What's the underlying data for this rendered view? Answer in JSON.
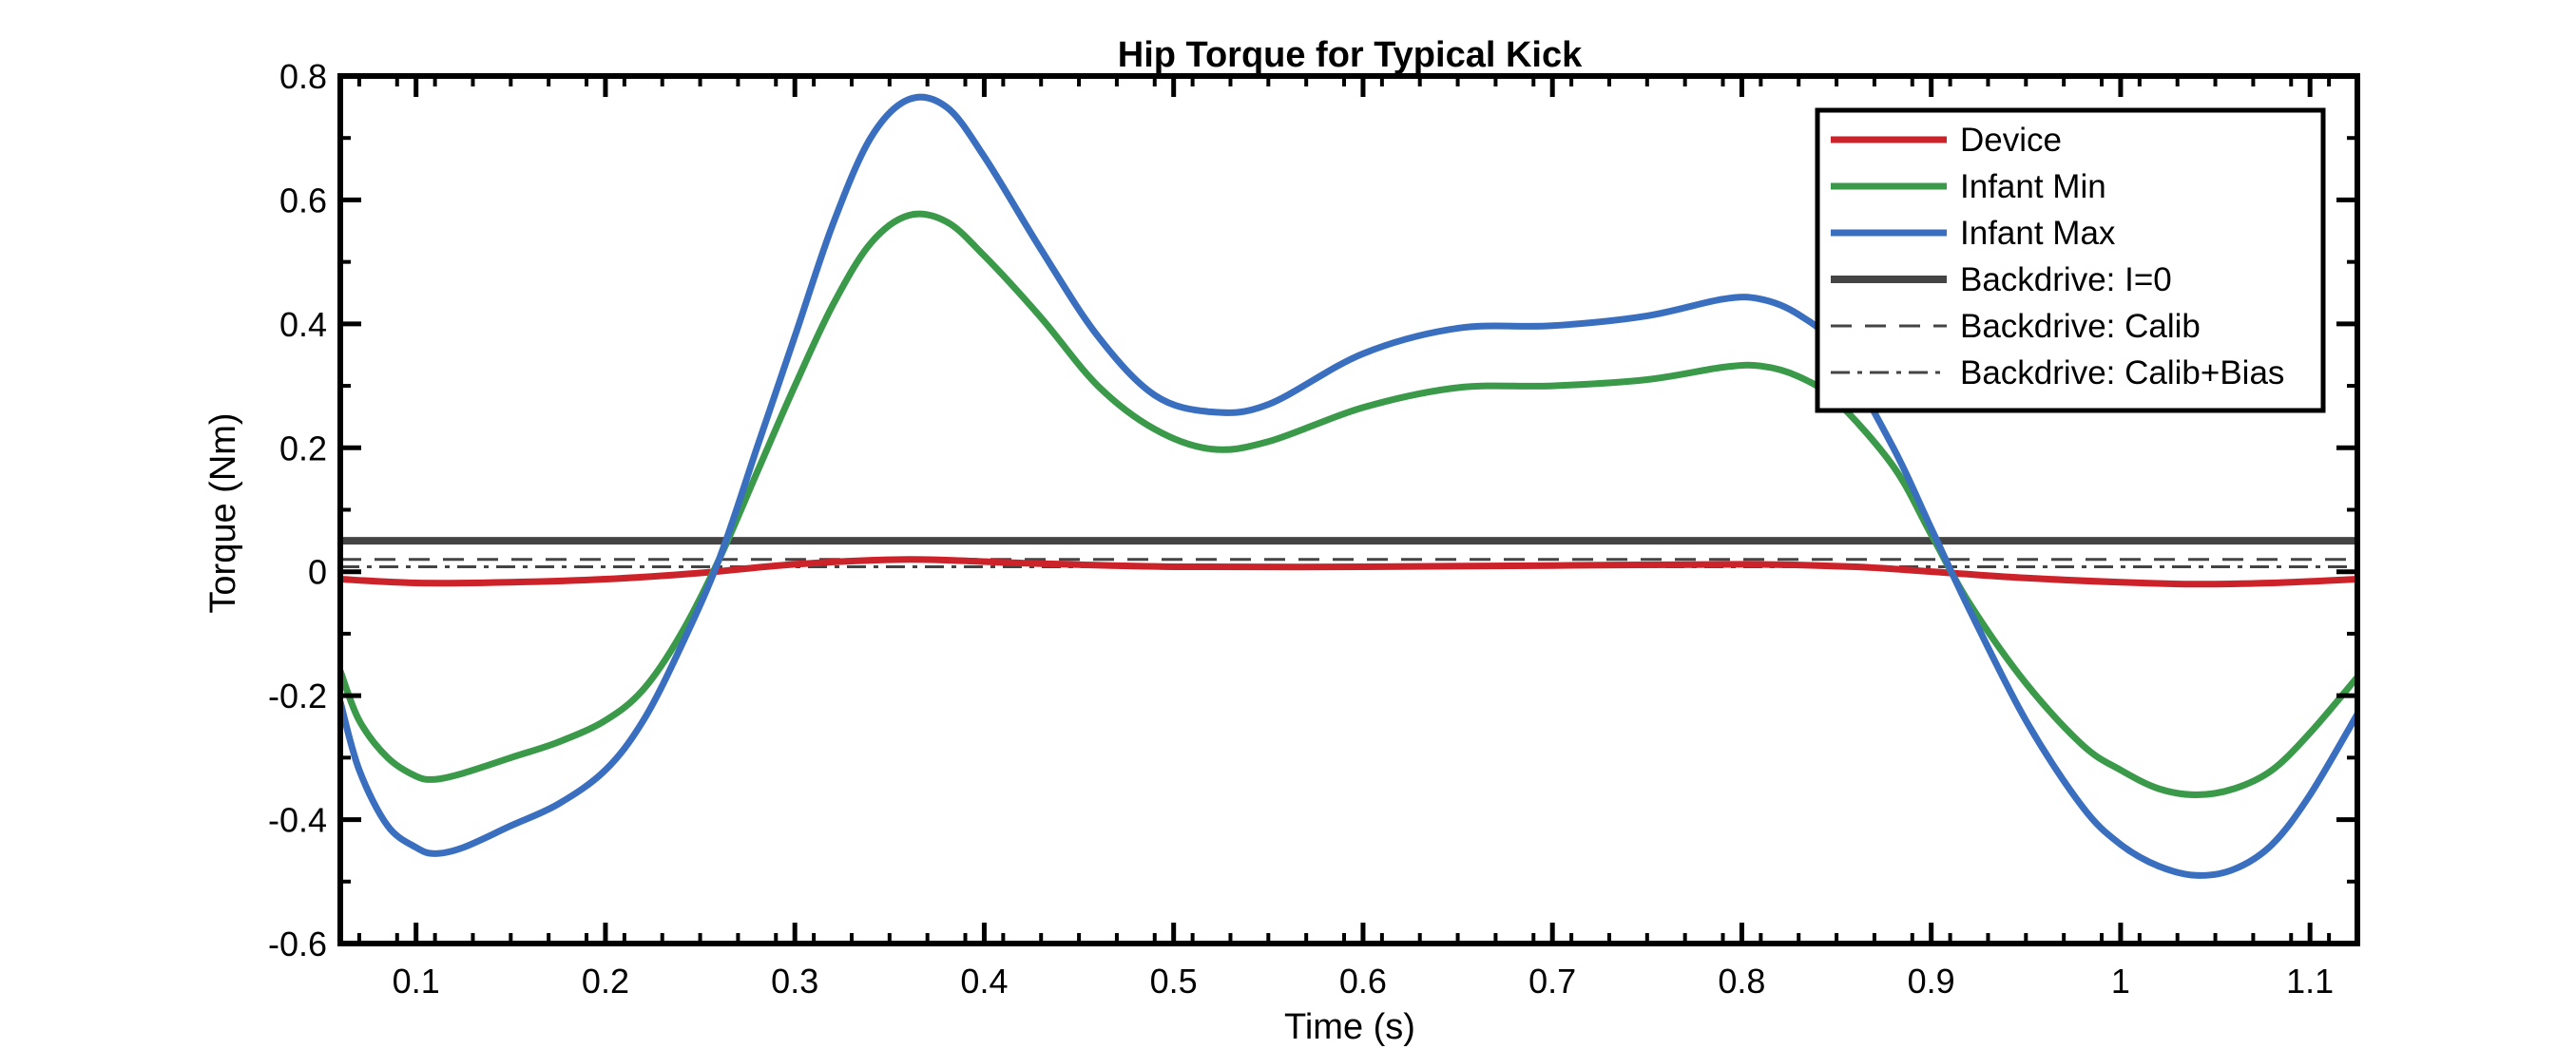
{
  "chart_data": {
    "type": "line",
    "title": "Hip Torque for Typical Kick",
    "xlabel": "Time (s)",
    "ylabel": "Torque (Nm)",
    "xlim": [
      0.06,
      1.125
    ],
    "ylim": [
      -0.6,
      0.8
    ],
    "xticks": [
      0.1,
      0.2,
      0.3,
      0.4,
      0.5,
      0.6,
      0.7,
      0.8,
      0.9,
      1.0,
      1.1
    ],
    "xtick_labels": [
      "0.1",
      "0.2",
      "0.3",
      "0.4",
      "0.5",
      "0.6",
      "0.7",
      "0.8",
      "0.9",
      "1",
      "1.1"
    ],
    "yticks": [
      -0.6,
      -0.4,
      -0.2,
      0,
      0.2,
      0.4,
      0.6,
      0.8
    ],
    "ytick_labels": [
      "-0.6",
      "-0.4",
      "-0.2",
      "0",
      "0.2",
      "0.4",
      "0.6",
      "0.8"
    ],
    "grid": false,
    "legend_position": "top-right",
    "series": [
      {
        "name": "Device",
        "color": "#cc2229",
        "style": "solid",
        "points": [
          [
            0.06,
            -0.012
          ],
          [
            0.1,
            -0.018
          ],
          [
            0.15,
            -0.017
          ],
          [
            0.2,
            -0.012
          ],
          [
            0.25,
            -0.002
          ],
          [
            0.3,
            0.012
          ],
          [
            0.36,
            0.02
          ],
          [
            0.42,
            0.014
          ],
          [
            0.5,
            0.008
          ],
          [
            0.6,
            0.008
          ],
          [
            0.7,
            0.01
          ],
          [
            0.8,
            0.012
          ],
          [
            0.86,
            0.008
          ],
          [
            0.91,
            -0.002
          ],
          [
            0.95,
            -0.01
          ],
          [
            1.0,
            -0.017
          ],
          [
            1.04,
            -0.02
          ],
          [
            1.08,
            -0.018
          ],
          [
            1.125,
            -0.012
          ]
        ]
      },
      {
        "name": "Infant Min",
        "color": "#3a9a4a",
        "style": "solid",
        "points": [
          [
            0.06,
            -0.16
          ],
          [
            0.07,
            -0.24
          ],
          [
            0.085,
            -0.3
          ],
          [
            0.1,
            -0.33
          ],
          [
            0.11,
            -0.335
          ],
          [
            0.125,
            -0.325
          ],
          [
            0.15,
            -0.3
          ],
          [
            0.175,
            -0.275
          ],
          [
            0.2,
            -0.24
          ],
          [
            0.22,
            -0.19
          ],
          [
            0.24,
            -0.1
          ],
          [
            0.26,
            0.02
          ],
          [
            0.28,
            0.16
          ],
          [
            0.3,
            0.3
          ],
          [
            0.32,
            0.43
          ],
          [
            0.34,
            0.53
          ],
          [
            0.36,
            0.575
          ],
          [
            0.38,
            0.565
          ],
          [
            0.4,
            0.51
          ],
          [
            0.43,
            0.41
          ],
          [
            0.46,
            0.3
          ],
          [
            0.49,
            0.23
          ],
          [
            0.52,
            0.198
          ],
          [
            0.55,
            0.21
          ],
          [
            0.6,
            0.265
          ],
          [
            0.65,
            0.297
          ],
          [
            0.7,
            0.3
          ],
          [
            0.75,
            0.31
          ],
          [
            0.79,
            0.33
          ],
          [
            0.81,
            0.332
          ],
          [
            0.83,
            0.315
          ],
          [
            0.85,
            0.275
          ],
          [
            0.88,
            0.17
          ],
          [
            0.9,
            0.06
          ],
          [
            0.92,
            -0.05
          ],
          [
            0.95,
            -0.18
          ],
          [
            0.98,
            -0.28
          ],
          [
            1.0,
            -0.32
          ],
          [
            1.02,
            -0.35
          ],
          [
            1.04,
            -0.36
          ],
          [
            1.06,
            -0.35
          ],
          [
            1.08,
            -0.32
          ],
          [
            1.1,
            -0.26
          ],
          [
            1.125,
            -0.17
          ]
        ]
      },
      {
        "name": "Infant Max",
        "color": "#3a6fbf",
        "style": "solid",
        "points": [
          [
            0.06,
            -0.21
          ],
          [
            0.07,
            -0.32
          ],
          [
            0.085,
            -0.41
          ],
          [
            0.1,
            -0.445
          ],
          [
            0.11,
            -0.455
          ],
          [
            0.125,
            -0.445
          ],
          [
            0.15,
            -0.41
          ],
          [
            0.175,
            -0.375
          ],
          [
            0.2,
            -0.32
          ],
          [
            0.22,
            -0.24
          ],
          [
            0.24,
            -0.12
          ],
          [
            0.26,
            0.02
          ],
          [
            0.28,
            0.2
          ],
          [
            0.3,
            0.38
          ],
          [
            0.32,
            0.56
          ],
          [
            0.34,
            0.7
          ],
          [
            0.36,
            0.762
          ],
          [
            0.38,
            0.75
          ],
          [
            0.4,
            0.67
          ],
          [
            0.43,
            0.52
          ],
          [
            0.46,
            0.38
          ],
          [
            0.49,
            0.285
          ],
          [
            0.52,
            0.258
          ],
          [
            0.55,
            0.27
          ],
          [
            0.6,
            0.352
          ],
          [
            0.65,
            0.393
          ],
          [
            0.7,
            0.397
          ],
          [
            0.75,
            0.413
          ],
          [
            0.79,
            0.44
          ],
          [
            0.81,
            0.44
          ],
          [
            0.83,
            0.415
          ],
          [
            0.85,
            0.36
          ],
          [
            0.88,
            0.2
          ],
          [
            0.9,
            0.07
          ],
          [
            0.92,
            -0.06
          ],
          [
            0.95,
            -0.24
          ],
          [
            0.98,
            -0.38
          ],
          [
            1.0,
            -0.44
          ],
          [
            1.02,
            -0.475
          ],
          [
            1.04,
            -0.49
          ],
          [
            1.06,
            -0.48
          ],
          [
            1.08,
            -0.44
          ],
          [
            1.1,
            -0.36
          ],
          [
            1.125,
            -0.23
          ]
        ]
      },
      {
        "name": "Backdrive: I=0",
        "color": "#444444",
        "style": "solid",
        "points": [
          [
            0.06,
            0.05
          ],
          [
            1.125,
            0.05
          ]
        ]
      },
      {
        "name": "Backdrive: Calib",
        "color": "#444444",
        "style": "dashed",
        "points": [
          [
            0.06,
            0.02
          ],
          [
            1.125,
            0.02
          ]
        ]
      },
      {
        "name": "Backdrive: Calib+Bias",
        "color": "#444444",
        "style": "dashdot",
        "points": [
          [
            0.06,
            0.008
          ],
          [
            1.125,
            0.008
          ]
        ]
      }
    ]
  }
}
